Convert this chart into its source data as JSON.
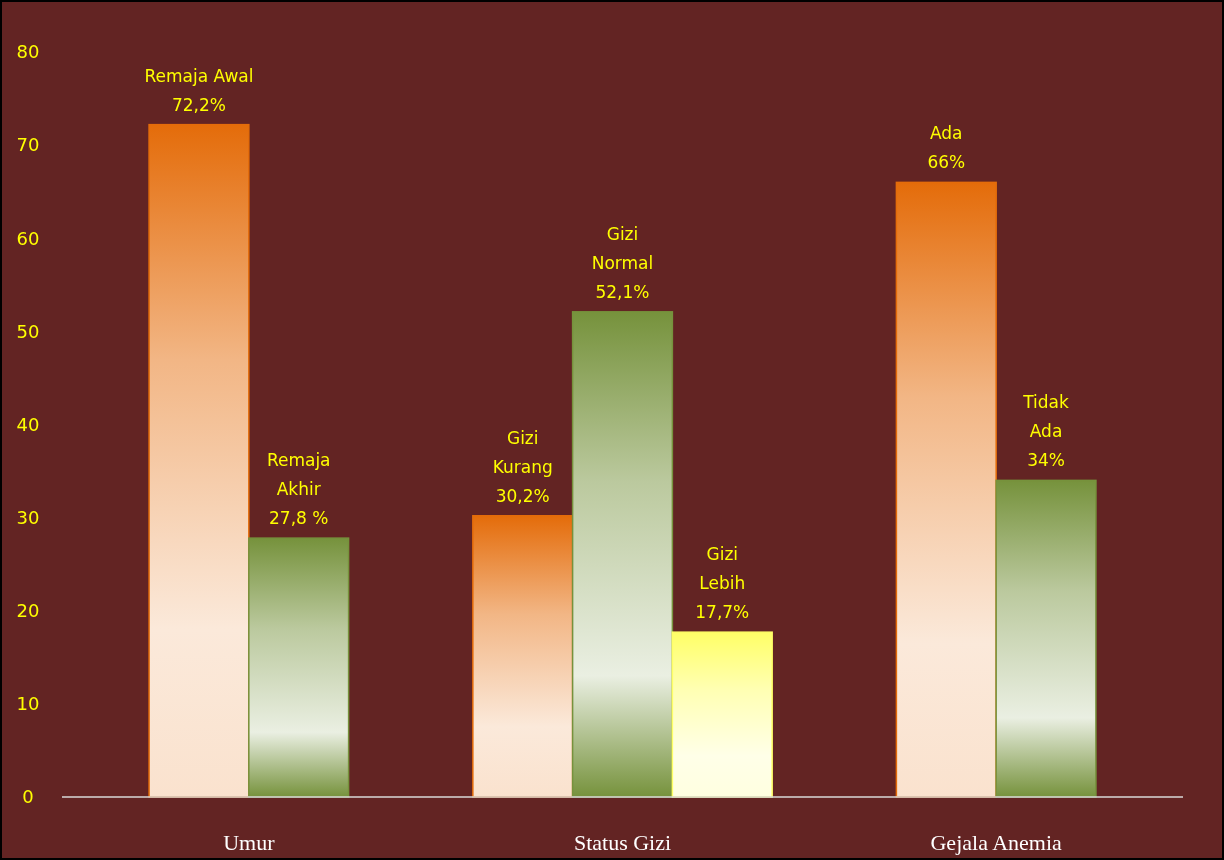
{
  "chart_data": {
    "type": "bar",
    "categories": [
      "Umur",
      "Status Gizi",
      "Gejala Anemia"
    ],
    "series": [
      {
        "color": "#e46c0a",
        "values": [
          72.2,
          30.2,
          66
        ],
        "value_labels": [
          "Remaja Awal\n72,2%",
          "Gizi\nKurang\n30,2%",
          "Ada\n66%"
        ]
      },
      {
        "color": "#76923c",
        "values": [
          27.8,
          52.1,
          34
        ],
        "value_labels": [
          "Remaja\nAkhir\n27,8 %",
          "Gizi\nNormal\n52,1%",
          "Tidak\nAda\n34%"
        ]
      },
      {
        "color": "#ffff66",
        "values": [
          null,
          17.7,
          null
        ],
        "value_labels": [
          null,
          "Gizi\nLebih\n17,7%",
          null
        ]
      }
    ],
    "ylim": [
      0,
      80
    ],
    "yticks": [
      0,
      10,
      20,
      30,
      40,
      50,
      60,
      70,
      80
    ],
    "grid": false
  }
}
